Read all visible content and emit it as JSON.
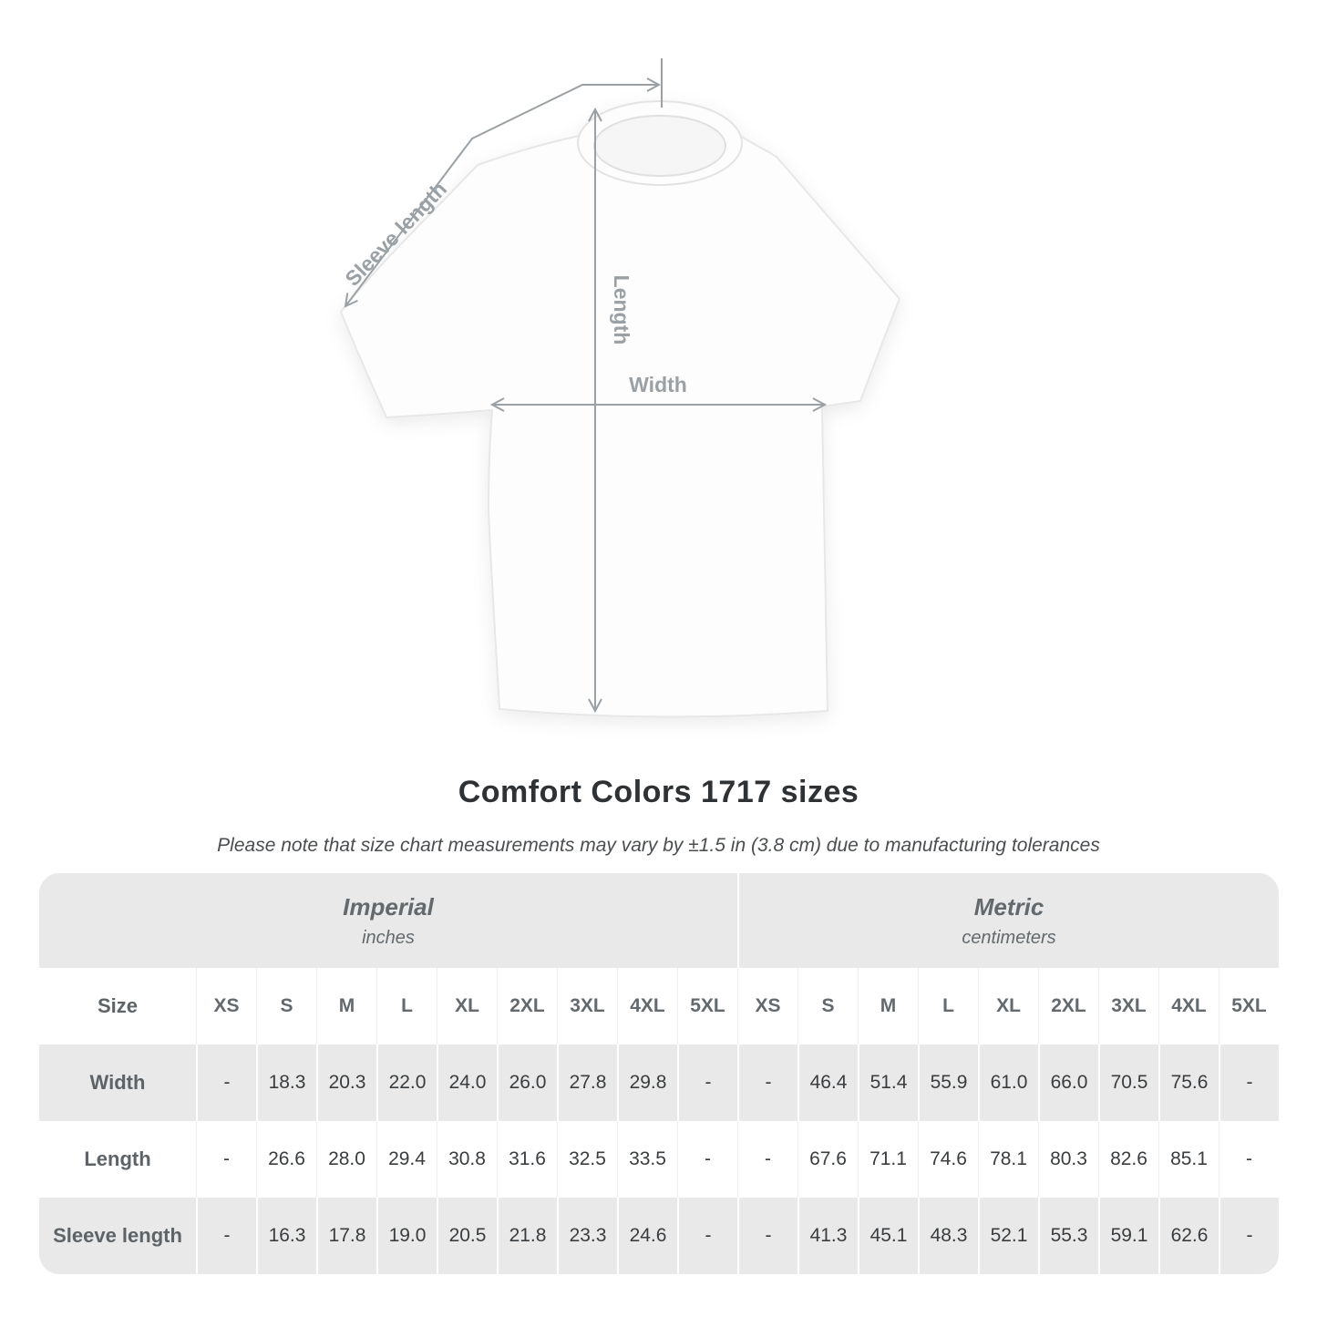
{
  "title": "Comfort Colors 1717 sizes",
  "subtitle": "Please note that size chart measurements may vary by ±1.5 in (3.8 cm) due to manufacturing tolerances",
  "diagram": {
    "sleeve_label": "Sleeve length",
    "length_label": "Length",
    "width_label": "Width"
  },
  "colors": {
    "arrow": "#9aa0a3",
    "band_gray": "#e9e9e9",
    "heading_text": "#63696c",
    "value_text": "#3a3d3f",
    "title_text": "#2f3234"
  },
  "table": {
    "size_label": "Size",
    "groups": [
      {
        "name": "Imperial",
        "unit": "inches"
      },
      {
        "name": "Metric",
        "unit": "centimeters"
      }
    ],
    "sizes": [
      "XS",
      "S",
      "M",
      "L",
      "XL",
      "2XL",
      "3XL",
      "4XL",
      "5XL"
    ],
    "rows": [
      {
        "label": "Width",
        "imperial": [
          "-",
          "18.3",
          "20.3",
          "22.0",
          "24.0",
          "26.0",
          "27.8",
          "29.8",
          "-"
        ],
        "metric": [
          "-",
          "46.4",
          "51.4",
          "55.9",
          "61.0",
          "66.0",
          "70.5",
          "75.6",
          "-"
        ]
      },
      {
        "label": "Length",
        "imperial": [
          "-",
          "26.6",
          "28.0",
          "29.4",
          "30.8",
          "31.6",
          "32.5",
          "33.5",
          "-"
        ],
        "metric": [
          "-",
          "67.6",
          "71.1",
          "74.6",
          "78.1",
          "80.3",
          "82.6",
          "85.1",
          "-"
        ]
      },
      {
        "label": "Sleeve length",
        "imperial": [
          "-",
          "16.3",
          "17.8",
          "19.0",
          "20.5",
          "21.8",
          "23.3",
          "24.6",
          "-"
        ],
        "metric": [
          "-",
          "41.3",
          "45.1",
          "48.3",
          "52.1",
          "55.3",
          "59.1",
          "62.6",
          "-"
        ]
      }
    ]
  },
  "chart_data": {
    "type": "table",
    "title": "Comfort Colors 1717 sizes",
    "columns": [
      "XS",
      "S",
      "M",
      "L",
      "XL",
      "2XL",
      "3XL",
      "4XL",
      "5XL"
    ],
    "units": [
      "inches",
      "centimeters"
    ],
    "width_in": [
      null,
      18.3,
      20.3,
      22.0,
      24.0,
      26.0,
      27.8,
      29.8,
      null
    ],
    "length_in": [
      null,
      26.6,
      28.0,
      29.4,
      30.8,
      31.6,
      32.5,
      33.5,
      null
    ],
    "sleeve_in": [
      null,
      16.3,
      17.8,
      19.0,
      20.5,
      21.8,
      23.3,
      24.6,
      null
    ],
    "width_cm": [
      null,
      46.4,
      51.4,
      55.9,
      61.0,
      66.0,
      70.5,
      75.6,
      null
    ],
    "length_cm": [
      null,
      67.6,
      71.1,
      74.6,
      78.1,
      80.3,
      82.6,
      85.1,
      null
    ],
    "sleeve_cm": [
      null,
      41.3,
      45.1,
      48.3,
      52.1,
      55.3,
      59.1,
      62.6,
      null
    ]
  }
}
